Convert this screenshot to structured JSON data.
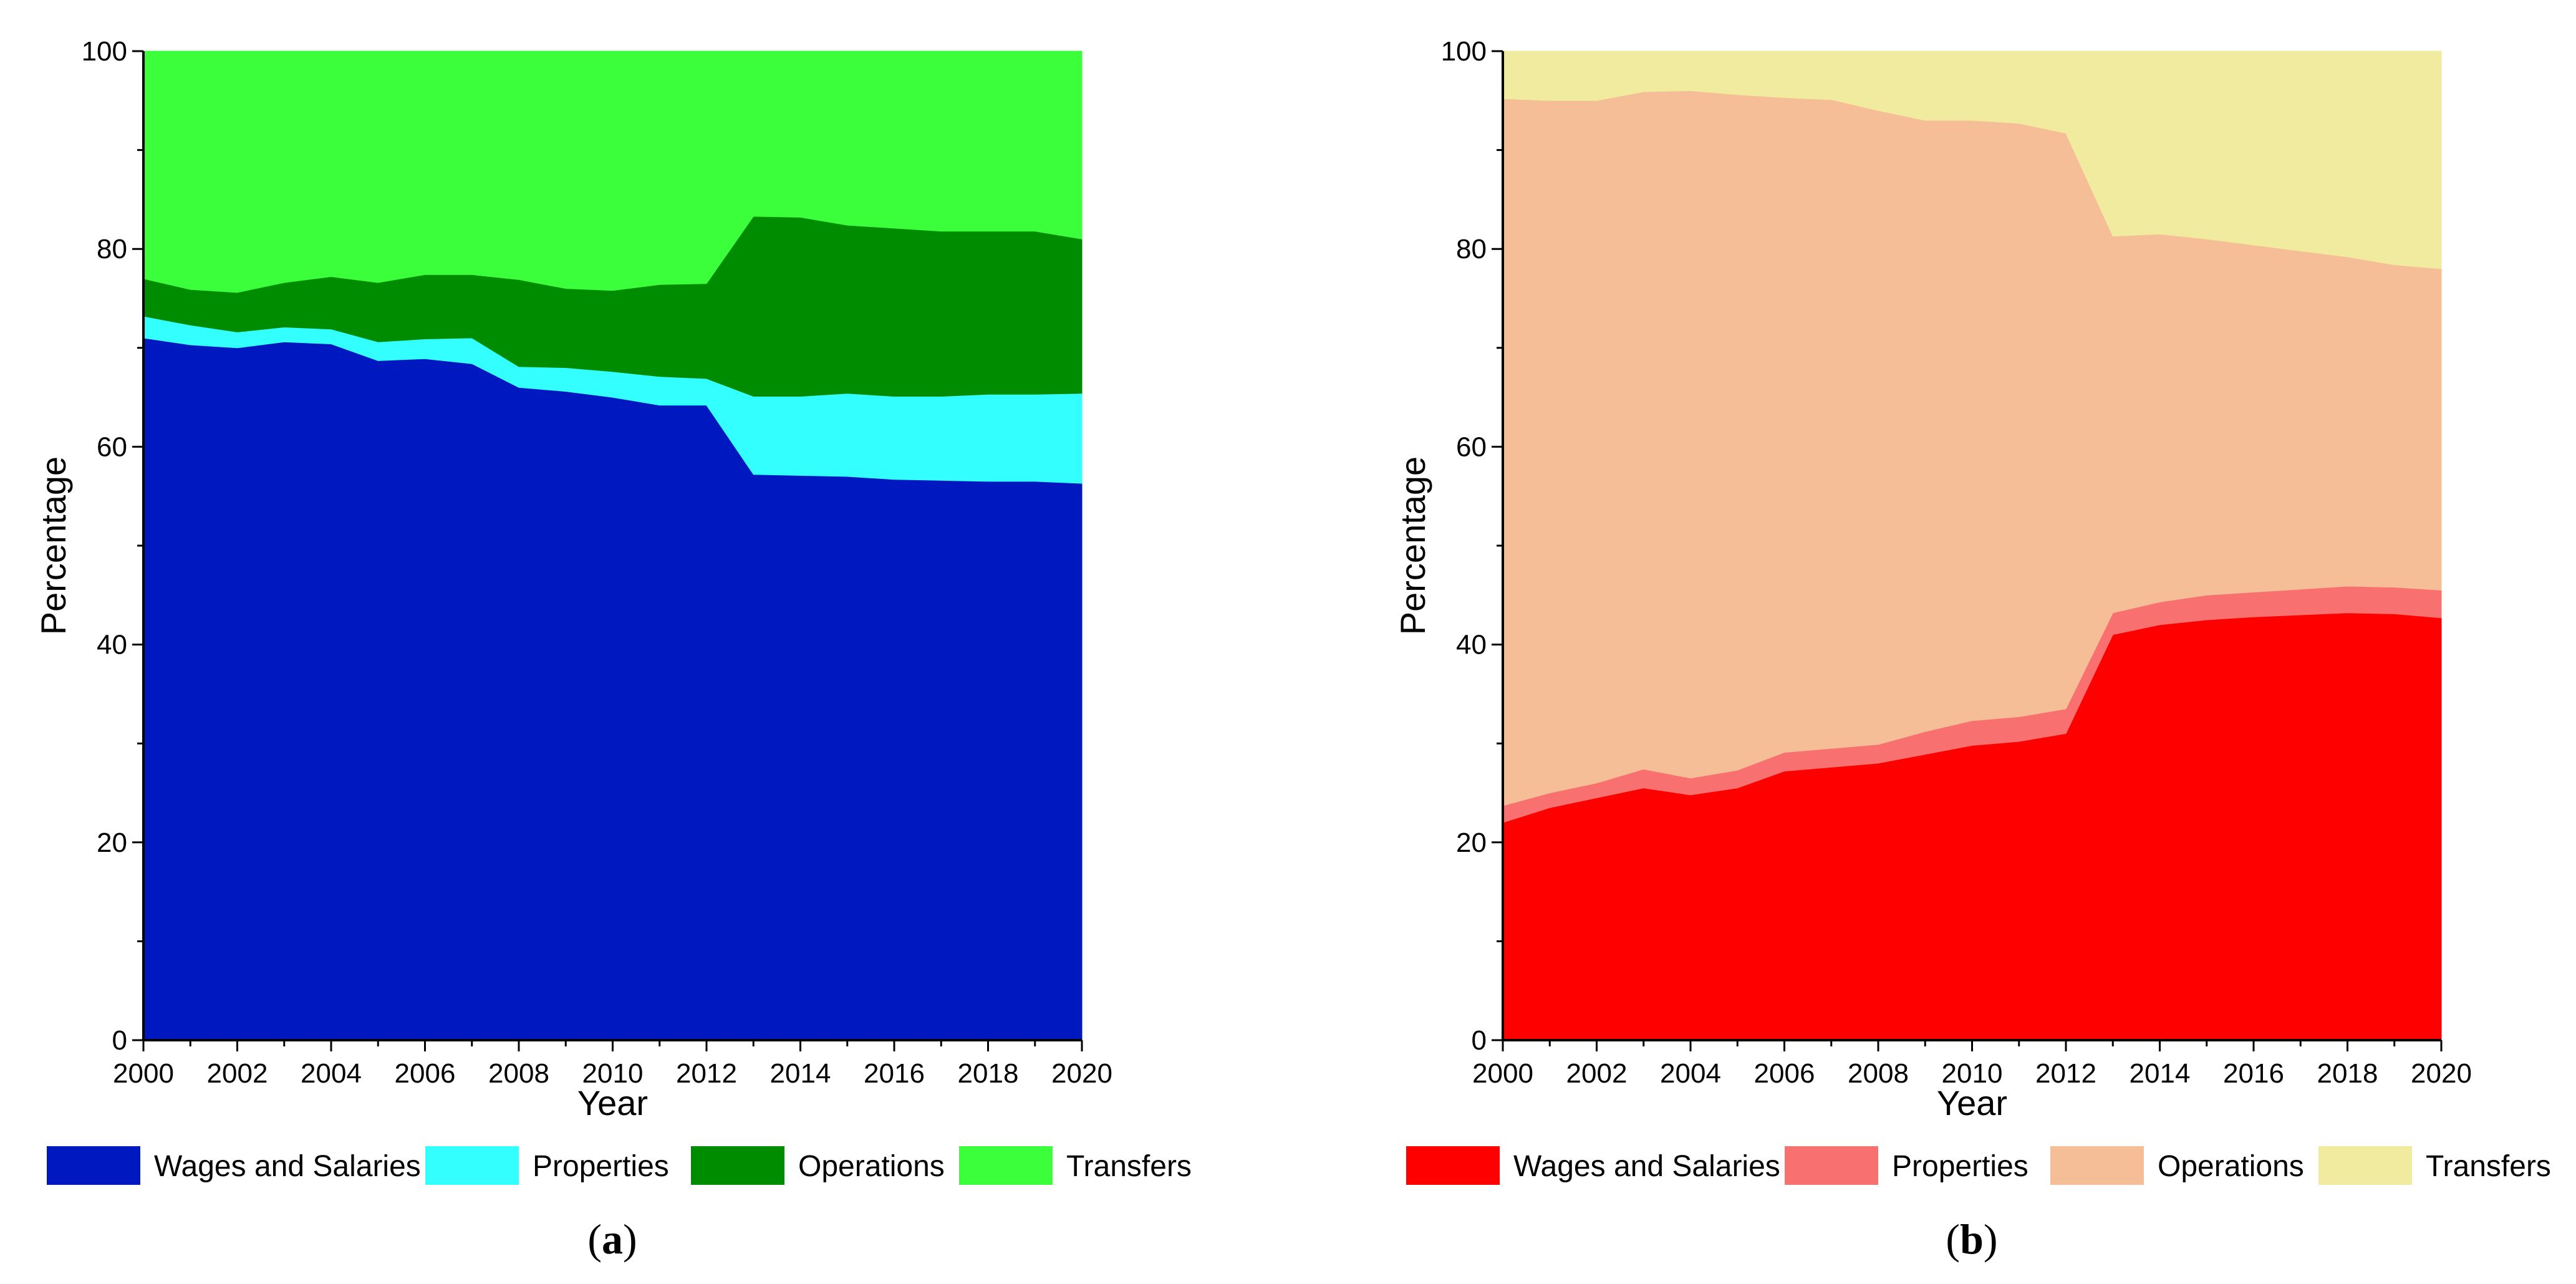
{
  "chart_data": [
    {
      "type": "area",
      "stacked": true,
      "panel_label": {
        "open": "(",
        "letter": "a",
        "close": ")"
      },
      "xlabel": "Year",
      "ylabel": "Percentage",
      "xlim": [
        2000,
        2020
      ],
      "ylim": [
        0,
        100
      ],
      "xticks": [
        "2000",
        "2002",
        "2004",
        "2006",
        "2008",
        "2010",
        "2012",
        "2014",
        "2016",
        "2018",
        "2020"
      ],
      "yticks": [
        "0",
        "20",
        "40",
        "60",
        "80",
        "100"
      ],
      "x": [
        2000,
        2001,
        2002,
        2003,
        2004,
        2005,
        2006,
        2007,
        2008,
        2009,
        2010,
        2011,
        2012,
        2013,
        2014,
        2015,
        2016,
        2017,
        2018,
        2019,
        2020
      ],
      "series": [
        {
          "name": "Wages and Salaries",
          "color": "#0018C0",
          "values": [
            71,
            70.3,
            70,
            70.6,
            70.4,
            68.7,
            68.9,
            68.4,
            66,
            65.6,
            65,
            64.2,
            64.2,
            57.2,
            57.1,
            57,
            56.7,
            56.6,
            56.5,
            56.5,
            56.3
          ]
        },
        {
          "name": "Properties",
          "color": "#33FFFF",
          "values": [
            2.2,
            2,
            1.6,
            1.5,
            1.5,
            1.9,
            2,
            2.6,
            2.1,
            2.4,
            2.6,
            2.9,
            2.7,
            7.9,
            8,
            8.4,
            8.4,
            8.5,
            8.8,
            8.8,
            9.1
          ]
        },
        {
          "name": "Operations",
          "color": "#008C00",
          "values": [
            3.8,
            3.6,
            4,
            4.5,
            5.3,
            6,
            6.5,
            6.4,
            8.8,
            8,
            8.2,
            9.3,
            9.6,
            18.2,
            18.1,
            17,
            17,
            16.7,
            16.5,
            16.5,
            15.6
          ]
        },
        {
          "name": "Transfers",
          "color": "#3CFF3C",
          "values": [
            23,
            24.1,
            24.4,
            23.4,
            22.8,
            23.4,
            22.6,
            22.6,
            23.1,
            24,
            24.2,
            23.6,
            23.5,
            16.7,
            16.8,
            17.6,
            17.9,
            18.2,
            18.2,
            18.2,
            19
          ]
        }
      ]
    },
    {
      "type": "area",
      "stacked": true,
      "panel_label": {
        "open": "(",
        "letter": "b",
        "close": ")"
      },
      "xlabel": "Year",
      "ylabel": "Percentage",
      "xlim": [
        2000,
        2020
      ],
      "ylim": [
        0,
        100
      ],
      "xticks": [
        "2000",
        "2002",
        "2004",
        "2006",
        "2008",
        "2010",
        "2012",
        "2014",
        "2016",
        "2018",
        "2020"
      ],
      "yticks": [
        "0",
        "20",
        "40",
        "60",
        "80",
        "100"
      ],
      "x": [
        2000,
        2001,
        2002,
        2003,
        2004,
        2005,
        2006,
        2007,
        2008,
        2009,
        2010,
        2011,
        2012,
        2013,
        2014,
        2015,
        2016,
        2017,
        2018,
        2019,
        2020
      ],
      "series": [
        {
          "name": "Wages and Salaries",
          "color": "#FF0000",
          "values": [
            22,
            23.5,
            24.5,
            25.5,
            24.8,
            25.5,
            27.2,
            27.6,
            28,
            28.9,
            29.8,
            30.2,
            31,
            41,
            42,
            42.5,
            42.8,
            43,
            43.2,
            43.1,
            42.7
          ]
        },
        {
          "name": "Properties",
          "color": "#F87070",
          "values": [
            1.7,
            1.5,
            1.5,
            1.9,
            1.7,
            1.8,
            1.9,
            1.9,
            1.9,
            2.3,
            2.5,
            2.5,
            2.5,
            2.2,
            2.3,
            2.5,
            2.5,
            2.6,
            2.7,
            2.7,
            2.8
          ]
        },
        {
          "name": "Operations",
          "color": "#F5BE96",
          "values": [
            71.5,
            70,
            69,
            68.5,
            69.5,
            68.3,
            66.2,
            65.6,
            64.1,
            61.8,
            60.7,
            60,
            58.2,
            38.1,
            37.2,
            36,
            35.1,
            34.2,
            33.3,
            32.6,
            32.5
          ]
        },
        {
          "name": "Transfers",
          "color": "#F0EB9E",
          "values": [
            4.8,
            5,
            5,
            4.1,
            4,
            4.4,
            4.7,
            4.9,
            6,
            7,
            7,
            7.3,
            8.3,
            18.7,
            18.5,
            19,
            19.6,
            20.2,
            20.8,
            21.6,
            22
          ]
        }
      ]
    }
  ]
}
